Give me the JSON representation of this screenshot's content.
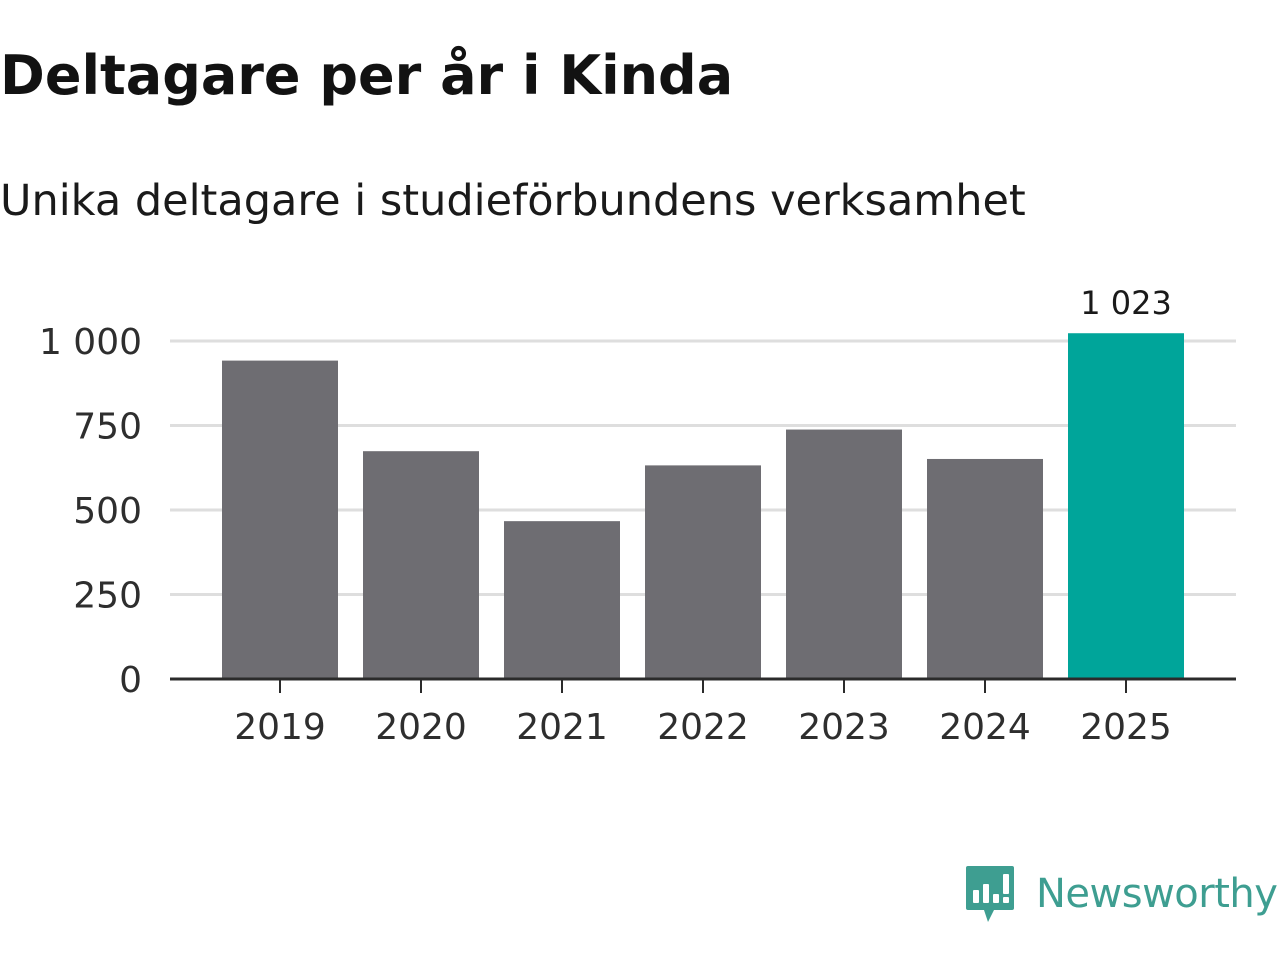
{
  "title": "Deltagare per år i Kinda",
  "subtitle": "Unika deltagare i studieförbundens verksamhet",
  "brand": {
    "name": "Newsworthy",
    "icon": "bar-chart-speech-bubble-icon",
    "color": "#3e9e91"
  },
  "chart_data": {
    "type": "bar",
    "title": "Deltagare per år i Kinda",
    "subtitle": "Unika deltagare i studieförbundens verksamhet",
    "categories": [
      "2019",
      "2020",
      "2021",
      "2022",
      "2023",
      "2024",
      "2025"
    ],
    "values": [
      942,
      674,
      467,
      632,
      738,
      651,
      1023
    ],
    "value_labels": [
      "",
      "",
      "",
      "",
      "",
      "",
      "1 023"
    ],
    "yticks": [
      0,
      250,
      500,
      750,
      1000
    ],
    "ytick_labels": [
      "0",
      "250",
      "500",
      "750",
      "1 000"
    ],
    "ylim": [
      0,
      1023
    ],
    "grid": true,
    "xlabel": "",
    "ylabel": "",
    "colors": {
      "default": "#6e6d72",
      "highlight": "#00a59a",
      "grid": "#dedede",
      "axis": "#2b2b2b"
    },
    "highlight_index": 6
  }
}
